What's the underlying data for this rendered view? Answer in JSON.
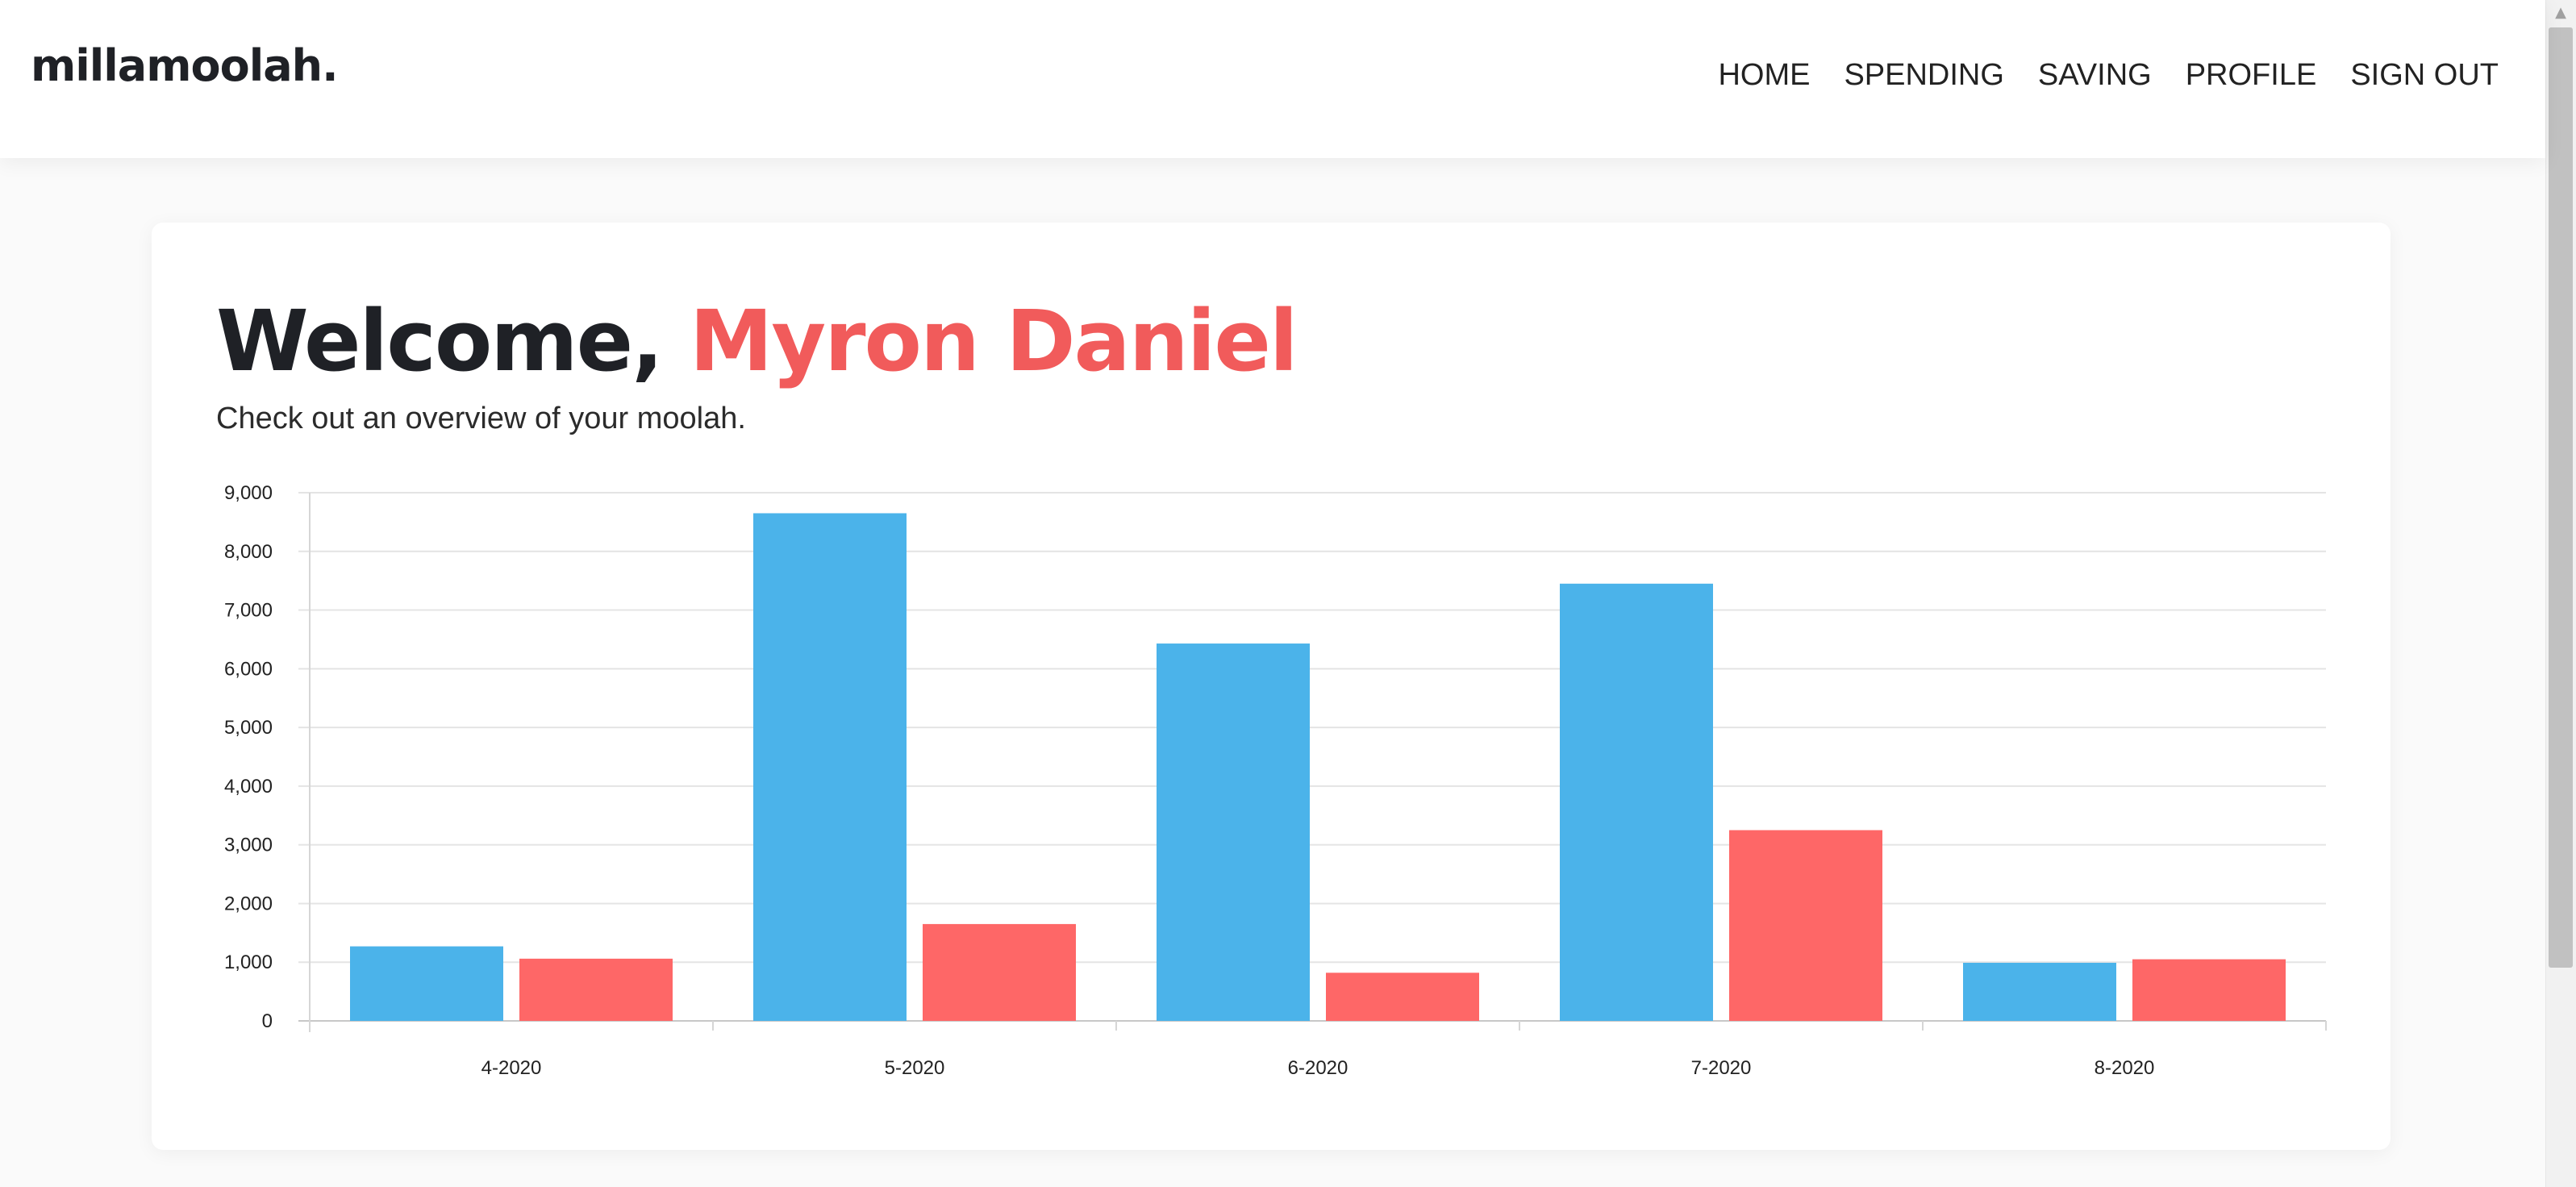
{
  "navbar": {
    "logo": "millamoolah.",
    "links": [
      "HOME",
      "SPENDING",
      "SAVING",
      "PROFILE",
      "SIGN OUT"
    ]
  },
  "welcome": {
    "greeting": "Welcome,",
    "name": "Myron Daniel",
    "subtitle": "Check out an overview of your moolah."
  },
  "colors": {
    "accent": "#f15b5b",
    "series_blue": "#4bb3ea",
    "series_red": "#fe6767"
  },
  "chart_data": {
    "type": "bar",
    "title": "",
    "xlabel": "",
    "ylabel": "",
    "categories": [
      "4-2020",
      "5-2020",
      "6-2020",
      "7-2020",
      "8-2020"
    ],
    "series": [
      {
        "values": [
          1270,
          8650,
          6430,
          7450,
          990
        ]
      },
      {
        "values": [
          1060,
          1650,
          820,
          3250,
          1050
        ]
      }
    ],
    "ylim": [
      0,
      9000
    ],
    "yticks": [
      "0",
      "1,000",
      "2,000",
      "3,000",
      "4,000",
      "5,000",
      "6,000",
      "7,000",
      "8,000",
      "9,000"
    ],
    "grid": true
  }
}
